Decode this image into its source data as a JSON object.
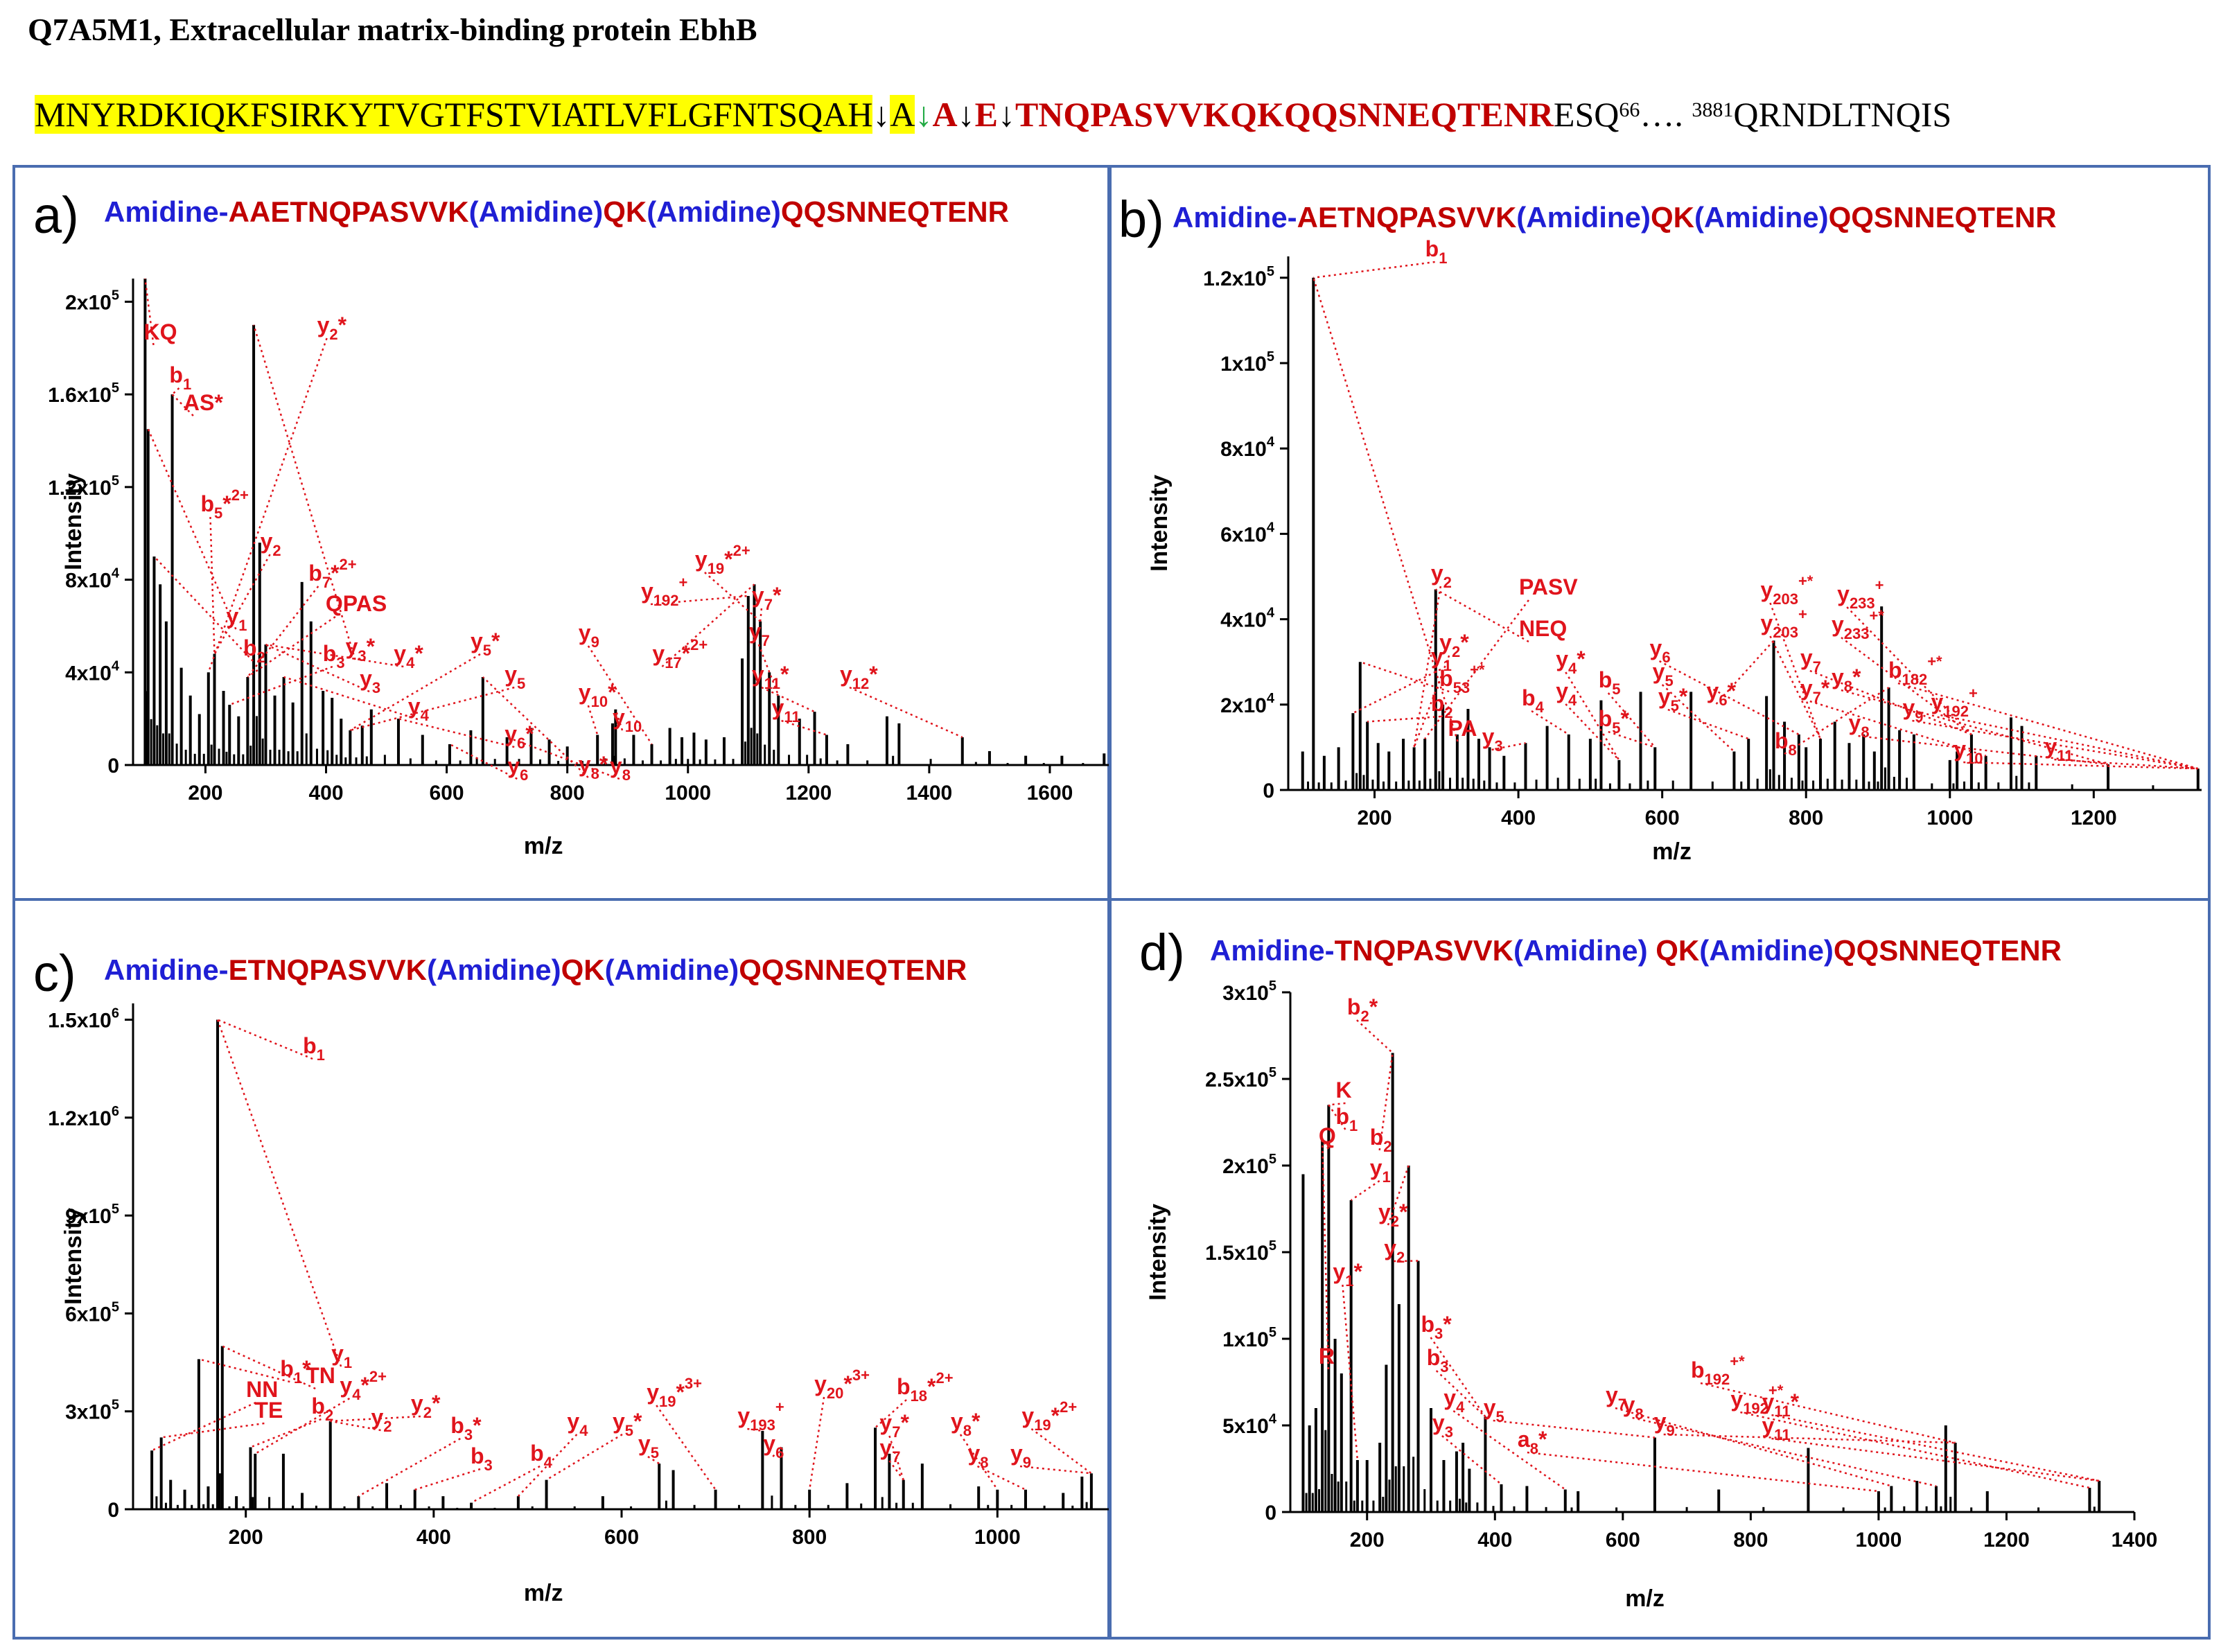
{
  "header": {
    "title": "Q7A5M1, Extracellular matrix-binding protein EbhB",
    "seq_highlight": "MNYRDKIQKFSIRKYTVGTFSTVIATLVFLGFNTSQAH",
    "seq_arrow1": "↓",
    "seq_A1": "A",
    "seq_arrow_green": "↓",
    "seq_A2": "A",
    "seq_arrow2": "↓",
    "seq_E": "E",
    "seq_arrow3": "↓",
    "seq_red": "TNQPASVVKQKQQSNNEQTENR",
    "seq_tail": "ESQ",
    "seq_sup66": "66",
    "seq_dots": "…. ",
    "seq_sup3881": "3881",
    "seq_end": "QRNDLTNQIS"
  },
  "panels": {
    "a": {
      "label": "a)",
      "t_amidine1": "Amidine-",
      "t_seq1": "AAETNQPASVVK",
      "t_amidine2": "(Amidine)",
      "t_seq2": "QK",
      "t_amidine3": "(Amidine)",
      "t_seq3": "QQSNNEQTENR"
    },
    "b": {
      "label": "b)",
      "t_amidine1": "Amidine-",
      "t_seq1": "AETNQPASVVK",
      "t_amidine2": "(Amidine)",
      "t_seq2": "QK",
      "t_amidine3": "(Amidine)",
      "t_seq3": "QQSNNEQTENR"
    },
    "c": {
      "label": "c)",
      "t_amidine1": "Amidine-",
      "t_seq1": "ETNQPASVVK",
      "t_amidine2": "(Amidine)",
      "t_seq2": "QK",
      "t_amidine3": "(Amidine)",
      "t_seq3": "QQSNNEQTENR"
    },
    "d": {
      "label": "d)",
      "t_amidine1": "Amidine-",
      "t_seq1": "TNQPASVVK",
      "t_amidine2": "(Amidine)",
      "t_seq2": " QK",
      "t_amidine3": "(Amidine)",
      "t_seq3": "QQSNNEQTENR"
    }
  },
  "chart_data": [
    {
      "id": "a",
      "type": "bar",
      "title": "Amidine-AAETNQPASVVK(Amidine)QK(Amidine)QQSNNEQTENR",
      "xlabel": "m/z",
      "ylabel": "Intensity",
      "xlim": [
        80,
        1700
      ],
      "ylim": [
        0,
        210000
      ],
      "xticks": [
        200,
        400,
        600,
        800,
        1000,
        1200,
        1400,
        1600
      ],
      "yticks": [
        0,
        40000,
        80000,
        120000,
        160000,
        200000
      ],
      "ytick_labels": [
        "0",
        "4x10",
        "8x10",
        "1.2x10",
        "1.6x10",
        "2x10"
      ],
      "ytick_sups": [
        "",
        "4",
        "4",
        "5",
        "5",
        "5"
      ],
      "peaks": [
        [
          100,
          210000
        ],
        [
          105,
          145000
        ],
        [
          115,
          90000
        ],
        [
          125,
          78000
        ],
        [
          135,
          62000
        ],
        [
          145,
          160000
        ],
        [
          160,
          42000
        ],
        [
          175,
          30000
        ],
        [
          190,
          22000
        ],
        [
          205,
          40000
        ],
        [
          215,
          48000
        ],
        [
          230,
          32000
        ],
        [
          240,
          26000
        ],
        [
          255,
          21000
        ],
        [
          270,
          38000
        ],
        [
          280,
          190000
        ],
        [
          290,
          96000
        ],
        [
          300,
          52000
        ],
        [
          315,
          30000
        ],
        [
          330,
          38000
        ],
        [
          345,
          27000
        ],
        [
          360,
          79000
        ],
        [
          375,
          62000
        ],
        [
          395,
          32000
        ],
        [
          410,
          29000
        ],
        [
          425,
          20000
        ],
        [
          440,
          15000
        ],
        [
          460,
          17000
        ],
        [
          475,
          24000
        ],
        [
          520,
          20000
        ],
        [
          560,
          13000
        ],
        [
          605,
          9000
        ],
        [
          640,
          15000
        ],
        [
          660,
          38000
        ],
        [
          700,
          12000
        ],
        [
          740,
          16000
        ],
        [
          770,
          11000
        ],
        [
          800,
          8000
        ],
        [
          850,
          13000
        ],
        [
          875,
          18000
        ],
        [
          880,
          24000
        ],
        [
          910,
          13000
        ],
        [
          940,
          9000
        ],
        [
          970,
          16000
        ],
        [
          990,
          12000
        ],
        [
          1010,
          14000
        ],
        [
          1030,
          11000
        ],
        [
          1060,
          12000
        ],
        [
          1090,
          46000
        ],
        [
          1100,
          73000
        ],
        [
          1110,
          78000
        ],
        [
          1120,
          62000
        ],
        [
          1135,
          40000
        ],
        [
          1150,
          30000
        ],
        [
          1185,
          20000
        ],
        [
          1210,
          23000
        ],
        [
          1230,
          13000
        ],
        [
          1265,
          9000
        ],
        [
          1330,
          21000
        ],
        [
          1350,
          18000
        ],
        [
          1455,
          12000
        ],
        [
          1500,
          6000
        ],
        [
          1560,
          4000
        ],
        [
          1620,
          4000
        ],
        [
          1690,
          5000
        ]
      ],
      "annotations": [
        "KQ",
        "b1",
        "AS*",
        "y2*",
        "b5*2+",
        "y2",
        "b7*2+",
        "QPAS",
        "y1",
        "b2",
        "b3",
        "y3*",
        "y3",
        "y4*",
        "y4",
        "y5*",
        "y5",
        "y6*",
        "y6",
        "y8*",
        "y8",
        "y9",
        "y17*2+",
        "y19*2+",
        "y192+",
        "y7*",
        "y7",
        "y10*",
        "y10",
        "y11*",
        "y11",
        "y12*"
      ]
    },
    {
      "id": "b",
      "type": "bar",
      "title": "Amidine-AETNQPASVVK(Amidine)QK(Amidine)QQSNNEQTENR",
      "xlabel": "m/z",
      "ylabel": "Intensity",
      "xlim": [
        80,
        1350
      ],
      "ylim": [
        0,
        125000
      ],
      "xticks": [
        200,
        400,
        600,
        800,
        1000,
        1200
      ],
      "yticks": [
        0,
        20000,
        40000,
        60000,
        80000,
        100000,
        120000
      ],
      "ytick_labels": [
        "0",
        "2x10",
        "4x10",
        "6x10",
        "8x10",
        "1x10",
        "1.2x10"
      ],
      "ytick_sups": [
        "",
        "4",
        "4",
        "4",
        "4",
        "5",
        "5"
      ],
      "peaks": [
        [
          100,
          9000
        ],
        [
          115,
          120000
        ],
        [
          130,
          8000
        ],
        [
          150,
          10000
        ],
        [
          170,
          18000
        ],
        [
          180,
          30000
        ],
        [
          190,
          16000
        ],
        [
          205,
          11000
        ],
        [
          220,
          9000
        ],
        [
          240,
          12000
        ],
        [
          255,
          10000
        ],
        [
          270,
          12000
        ],
        [
          285,
          47000
        ],
        [
          295,
          20000
        ],
        [
          315,
          13000
        ],
        [
          330,
          19000
        ],
        [
          345,
          12000
        ],
        [
          360,
          10000
        ],
        [
          380,
          8000
        ],
        [
          410,
          11000
        ],
        [
          440,
          15000
        ],
        [
          470,
          13000
        ],
        [
          500,
          12000
        ],
        [
          515,
          21000
        ],
        [
          540,
          7000
        ],
        [
          570,
          23000
        ],
        [
          590,
          10000
        ],
        [
          640,
          23000
        ],
        [
          700,
          9000
        ],
        [
          720,
          12000
        ],
        [
          745,
          22000
        ],
        [
          755,
          35000
        ],
        [
          770,
          16000
        ],
        [
          790,
          13000
        ],
        [
          800,
          10000
        ],
        [
          820,
          12000
        ],
        [
          840,
          16000
        ],
        [
          860,
          11000
        ],
        [
          880,
          13000
        ],
        [
          895,
          9000
        ],
        [
          905,
          43000
        ],
        [
          915,
          24000
        ],
        [
          930,
          14000
        ],
        [
          950,
          13000
        ],
        [
          1000,
          7000
        ],
        [
          1010,
          9000
        ],
        [
          1030,
          13000
        ],
        [
          1050,
          8000
        ],
        [
          1085,
          17000
        ],
        [
          1100,
          15000
        ],
        [
          1120,
          8000
        ],
        [
          1220,
          6000
        ],
        [
          1345,
          5000
        ]
      ],
      "annotations": [
        "b1",
        "y2",
        "y1",
        "PA",
        "b53+*",
        "b2",
        "y2*",
        "PASV",
        "NEQ",
        "y3",
        "b4",
        "y4*",
        "y4",
        "b5*",
        "b5",
        "y5",
        "y5*",
        "y6*",
        "y6",
        "y203+*",
        "y203+",
        "y7*",
        "y7",
        "b8",
        "y233+",
        "y233+*",
        "y8*",
        "y8",
        "b182+*",
        "y9",
        "y192+",
        "y10",
        "y11"
      ]
    },
    {
      "id": "c",
      "type": "bar",
      "title": "Amidine-ETNQPASVVK(Amidine)QK(Amidine)QQSNNEQTENR",
      "xlabel": "m/z",
      "ylabel": "Intensity",
      "xlim": [
        80,
        1120
      ],
      "ylim": [
        0,
        1550000
      ],
      "xticks": [
        200,
        400,
        600,
        800,
        1000
      ],
      "yticks": [
        0,
        300000,
        600000,
        900000,
        1200000,
        1500000
      ],
      "ytick_labels": [
        "0",
        "3x10",
        "6x10",
        "9x10",
        "1.2x10",
        "1.5x10"
      ],
      "ytick_sups": [
        "",
        "5",
        "5",
        "5",
        "6",
        "6"
      ],
      "peaks": [
        [
          100,
          180000
        ],
        [
          110,
          220000
        ],
        [
          120,
          90000
        ],
        [
          135,
          60000
        ],
        [
          150,
          460000
        ],
        [
          160,
          70000
        ],
        [
          170,
          1500000
        ],
        [
          175,
          500000
        ],
        [
          190,
          40000
        ],
        [
          205,
          190000
        ],
        [
          210,
          170000
        ],
        [
          240,
          170000
        ],
        [
          260,
          50000
        ],
        [
          290,
          270000
        ],
        [
          320,
          40000
        ],
        [
          350,
          80000
        ],
        [
          380,
          60000
        ],
        [
          410,
          40000
        ],
        [
          440,
          20000
        ],
        [
          490,
          40000
        ],
        [
          520,
          90000
        ],
        [
          580,
          40000
        ],
        [
          640,
          140000
        ],
        [
          655,
          120000
        ],
        [
          700,
          60000
        ],
        [
          750,
          240000
        ],
        [
          770,
          190000
        ],
        [
          800,
          60000
        ],
        [
          840,
          80000
        ],
        [
          870,
          250000
        ],
        [
          885,
          170000
        ],
        [
          900,
          90000
        ],
        [
          920,
          140000
        ],
        [
          980,
          70000
        ],
        [
          1000,
          60000
        ],
        [
          1030,
          60000
        ],
        [
          1070,
          50000
        ],
        [
          1090,
          100000
        ],
        [
          1100,
          110000
        ]
      ],
      "annotations": [
        "b1",
        "b1*",
        "y1",
        "NN",
        "TN",
        "TE",
        "b2",
        "y4*2+",
        "y2",
        "y2*",
        "b3*",
        "b3",
        "b4",
        "y4",
        "y5*",
        "y5",
        "y19*3+",
        "y193+",
        "y6",
        "y20*3+",
        "b18*2+",
        "y7*",
        "y7",
        "y8*",
        "y8",
        "y19*2+",
        "y9"
      ]
    },
    {
      "id": "d",
      "type": "bar",
      "title": "Amidine-TNQPASVVK(Amidine) QK(Amidine)QQSNNEQTENR",
      "xlabel": "m/z",
      "ylabel": "Intensity",
      "xlim": [
        80,
        1400
      ],
      "ylim": [
        0,
        300000
      ],
      "xticks": [
        200,
        400,
        600,
        800,
        1000,
        1200,
        1400
      ],
      "yticks": [
        0,
        50000,
        100000,
        150000,
        200000,
        250000,
        300000
      ],
      "ytick_labels": [
        "0",
        "5x10",
        "1x10",
        "1.5x10",
        "2x10",
        "2.5x10",
        "3x10"
      ],
      "ytick_sups": [
        "",
        "4",
        "5",
        "5",
        "5",
        "5",
        "5"
      ],
      "peaks": [
        [
          100,
          195000
        ],
        [
          110,
          50000
        ],
        [
          120,
          60000
        ],
        [
          130,
          215000
        ],
        [
          140,
          235000
        ],
        [
          150,
          100000
        ],
        [
          160,
          80000
        ],
        [
          175,
          180000
        ],
        [
          185,
          30000
        ],
        [
          200,
          30000
        ],
        [
          220,
          40000
        ],
        [
          230,
          85000
        ],
        [
          240,
          265000
        ],
        [
          250,
          120000
        ],
        [
          265,
          200000
        ],
        [
          280,
          145000
        ],
        [
          300,
          60000
        ],
        [
          320,
          30000
        ],
        [
          340,
          35000
        ],
        [
          350,
          40000
        ],
        [
          360,
          25000
        ],
        [
          385,
          55000
        ],
        [
          410,
          16000
        ],
        [
          450,
          15000
        ],
        [
          510,
          13000
        ],
        [
          530,
          12000
        ],
        [
          650,
          43000
        ],
        [
          750,
          13000
        ],
        [
          890,
          37000
        ],
        [
          1000,
          12000
        ],
        [
          1020,
          15000
        ],
        [
          1060,
          18000
        ],
        [
          1090,
          15000
        ],
        [
          1105,
          50000
        ],
        [
          1120,
          40000
        ],
        [
          1170,
          12000
        ],
        [
          1330,
          14000
        ],
        [
          1345,
          18000
        ]
      ],
      "annotations": [
        "b2*",
        "K",
        "b1",
        "Q",
        "y1",
        "b2",
        "y2*",
        "y2",
        "y1*",
        "R",
        "b3*",
        "b3",
        "y3",
        "y4",
        "y5",
        "a8*",
        "y7",
        "y8",
        "y9",
        "b192+*",
        "y192+*",
        "y11*",
        "y11"
      ]
    }
  ]
}
